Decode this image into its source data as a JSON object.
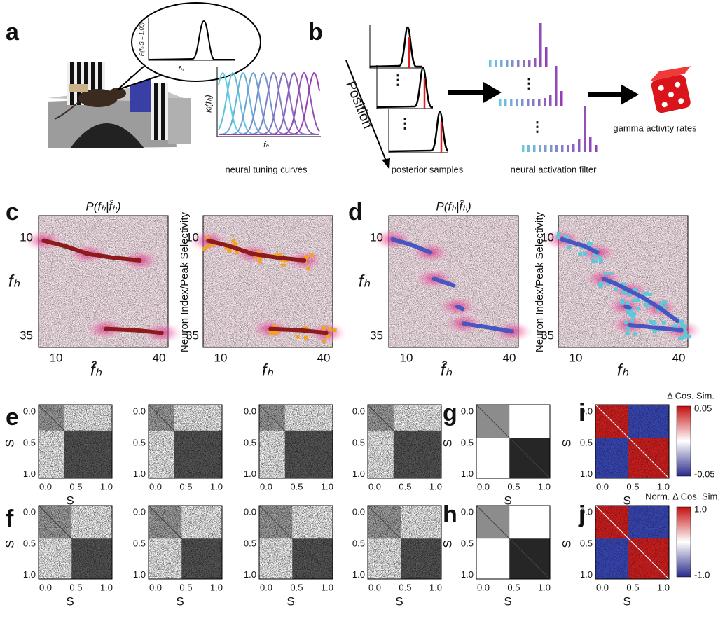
{
  "panel_labels": [
    "a",
    "b",
    "c",
    "d",
    "e",
    "f",
    "g",
    "h",
    "i",
    "j"
  ],
  "a": {
    "bubble_ylabel": "P(fₕ|S = 1.00)",
    "bubble_xlabel": "fₕ",
    "tuning_ylabel": "κᵢ(fₕ)",
    "tuning_xlabel": "fₕ",
    "caption": "neural tuning curves"
  },
  "b": {
    "arrow_label": "Position",
    "ellipsis": "⋮",
    "posterior_caption": "posterior samples",
    "filter_caption": "neural activation filter",
    "output_caption": "gamma activity rates"
  },
  "c": {
    "left_title": "P(fₕ|f̂ₕ)",
    "left_ylabel": "fₕ",
    "left_xlabel": "f̂ₕ",
    "right_ylabel": "Neuron Index/Peak Selectivity",
    "right_xlabel": "fₕ",
    "yticks": [
      "10",
      "35"
    ],
    "xticks": [
      "10",
      "40"
    ]
  },
  "d": {
    "left_title": "P(fₕ|f̂ₕ)",
    "left_ylabel": "fₕ",
    "left_xlabel": "f̂ₕ",
    "right_ylabel": "Neuron Index/Peak Selectivity",
    "right_xlabel": "fₕ",
    "yticks": [
      "10",
      "35"
    ],
    "xticks": [
      "10",
      "40"
    ]
  },
  "matrix_axes": {
    "ticks": [
      "0.0",
      "0.5",
      "1.0"
    ],
    "xlabel": "S",
    "ylabel": "S"
  },
  "i": {
    "colorbar_label": "Δ Cos. Sim.",
    "colorbar_ticks": [
      "0.05",
      "-0.05"
    ]
  },
  "j": {
    "colorbar_label": "Norm. Δ Cos. Sim.",
    "colorbar_ticks": [
      "1.0",
      "-1.0"
    ]
  }
}
